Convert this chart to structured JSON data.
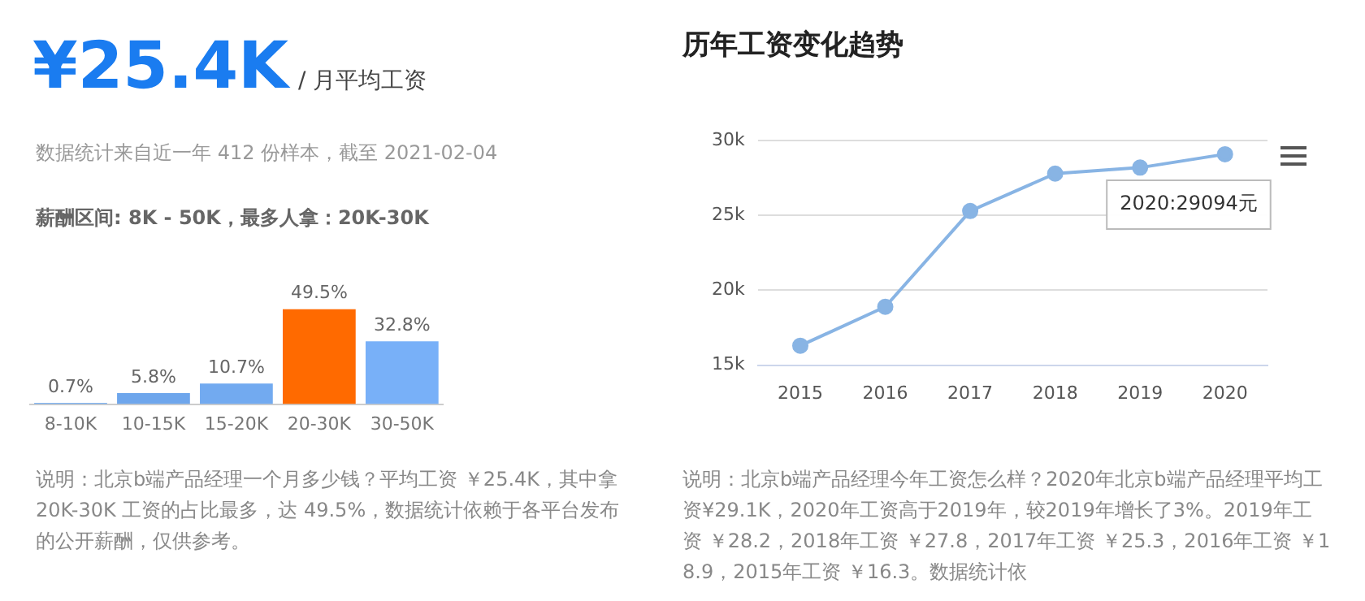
{
  "chart_data": [
    {
      "type": "bar",
      "title": "¥25.4K",
      "subtitle": "/ 月平均工资",
      "categories": [
        "8-10K",
        "10-15K",
        "15-20K",
        "20-30K",
        "30-50K"
      ],
      "values": [
        0.7,
        5.8,
        10.7,
        49.5,
        32.8
      ],
      "colors": [
        "#7fb2f0",
        "#6ea6ec",
        "#72aaf0",
        "#ff6a00",
        "#78b0f8"
      ],
      "value_labels": [
        "0.7%",
        "5.8%",
        "10.7%",
        "49.5%",
        "32.8%"
      ],
      "legend": false,
      "grid": false,
      "annotations": [
        "数据统计来自近一年 412 份样本，截至 2021-02-04",
        "薪酬区间: 8K - 50K，最多人拿：20K-30K",
        "说明：北京b端产品经理一个月多少钱？平均工资 ￥25.4K，其中拿 20K-30K 工资的占比最多，达 49.5%，数据统计依赖于各平台发布的公开薪酬，仅供参考。"
      ]
    },
    {
      "type": "line",
      "title": "历年工资变化趋势",
      "categories": [
        "2015",
        "2016",
        "2017",
        "2018",
        "2019",
        "2020"
      ],
      "series": [
        {
          "color": "#88b4e4",
          "values": [
            16300,
            18900,
            25300,
            27800,
            28200,
            29094
          ]
        }
      ],
      "ylim": [
        15000,
        30000
      ],
      "yticks": [
        {
          "value": 15000,
          "label": "15k"
        },
        {
          "value": 20000,
          "label": "20k"
        },
        {
          "value": 25000,
          "label": "25k"
        },
        {
          "value": 30000,
          "label": "30k"
        }
      ],
      "grid": "y",
      "legend": false,
      "marker": "circle",
      "line_style": "solid",
      "annotations": [
        {
          "text": "2020:29094元",
          "x": "2020",
          "y": 29094
        },
        "说明：北京b端产品经理今年工资怎么样？2020年北京b端产品经理平均工资¥29.1K，2020年工资高于2019年，较2019年增长了3%。2019年工资 ￥28.2，2018年工资 ￥27.8，2017年工资 ￥25.3，2016年工资 ￥18.9，2015年工资 ￥16.3。数据统计依"
      ]
    }
  ]
}
